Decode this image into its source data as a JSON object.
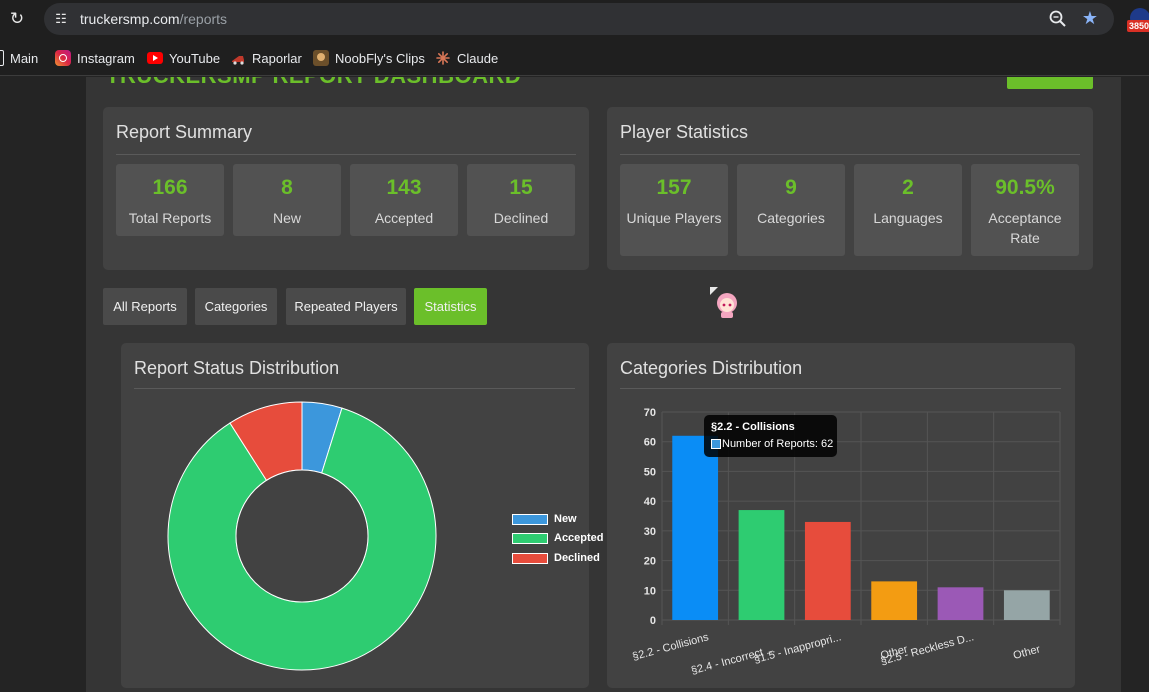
{
  "browser": {
    "url_host": "truckersmp.com",
    "url_path": "/reports",
    "extension_badge": "3850"
  },
  "bookmarks": [
    {
      "label": "Main",
      "icon": "folder-icon"
    },
    {
      "label": "Instagram",
      "icon": "instagram-icon",
      "color": "#e1306c"
    },
    {
      "label": "YouTube",
      "icon": "youtube-icon",
      "color": "#ff0000"
    },
    {
      "label": "Raporlar",
      "icon": "truck-icon",
      "color": "#c0392b"
    },
    {
      "label": "NoobFly's Clips",
      "icon": "avatar-icon",
      "color": "#8a6d3b"
    },
    {
      "label": "Claude",
      "icon": "claude-icon",
      "color": "#d97757"
    }
  ],
  "dashboard": {
    "title": "TRUCKERSMP REPORT DASHBOARD"
  },
  "report_summary": {
    "title": "Report Summary",
    "stats": [
      {
        "value": "166",
        "label": "Total Reports"
      },
      {
        "value": "8",
        "label": "New"
      },
      {
        "value": "143",
        "label": "Accepted"
      },
      {
        "value": "15",
        "label": "Declined"
      }
    ]
  },
  "player_statistics": {
    "title": "Player Statistics",
    "stats": [
      {
        "value": "157",
        "label": "Unique Players"
      },
      {
        "value": "9",
        "label": "Categories"
      },
      {
        "value": "2",
        "label": "Languages"
      },
      {
        "value": "90.5%",
        "label": "Acceptance Rate"
      }
    ]
  },
  "tabs": [
    {
      "label": "All Reports",
      "active": false
    },
    {
      "label": "Categories",
      "active": false
    },
    {
      "label": "Repeated Players",
      "active": false
    },
    {
      "label": "Statistics",
      "active": true
    }
  ],
  "colors": {
    "accent": "#6bbf2a",
    "new": "#3c97dc",
    "accepted": "#2ecc71",
    "declined": "#e74c3c"
  },
  "status_chart": {
    "title": "Report Status Distribution"
  },
  "categories_chart": {
    "title": "Categories Distribution",
    "tooltip": {
      "title": "§2.2 - Collisions",
      "body": "Number of Reports: 62"
    }
  },
  "chart_data": [
    {
      "type": "pie",
      "variant": "doughnut",
      "labels": [
        "New",
        "Accepted",
        "Declined"
      ],
      "values": [
        8,
        143,
        15
      ],
      "colors": [
        "#3c97dc",
        "#2ecc71",
        "#e74c3c"
      ],
      "legend": "right"
    },
    {
      "type": "bar",
      "categories": [
        "§2.2 - Collisions",
        "§2.4 - Incorrect ...",
        "§1.5 - Inappropri...",
        "Other",
        "§2.5 - Reckless D...",
        "Other"
      ],
      "series": [
        {
          "name": "Number of Reports",
          "values": [
            62,
            37,
            33,
            13,
            11,
            10
          ]
        }
      ],
      "colors": [
        "#0a8df6",
        "#2ecc71",
        "#e74c3c",
        "#f39c12",
        "#9b59b6",
        "#95a5a6"
      ],
      "ylim": [
        0,
        70
      ],
      "yticks": [
        0,
        10,
        20,
        30,
        40,
        50,
        60,
        70
      ],
      "grid": true
    }
  ]
}
